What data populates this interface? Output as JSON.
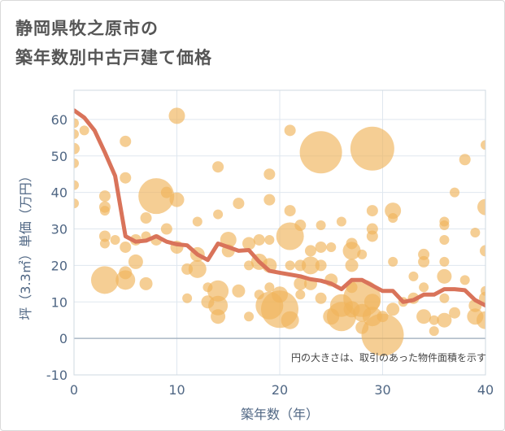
{
  "title_line1": "静岡県牧之原市の",
  "title_line2": "築年数別中古戸建て価格",
  "chart_data": {
    "type": "scatter",
    "xlabel": "築年数（年）",
    "ylabel": "坪（3.3㎡）単価（万円）",
    "xlim": [
      0,
      40
    ],
    "ylim": [
      -10,
      68
    ],
    "xticks": [
      0,
      10,
      20,
      30,
      40
    ],
    "yticks": [
      -10,
      0,
      10,
      20,
      30,
      40,
      50,
      60
    ],
    "grid": true,
    "annotation": "円の大きさは、取引のあった物件面積を示す",
    "colors": {
      "bubble": "#f0b35a",
      "line": "#d9735a",
      "grid": "#dfe7ef",
      "text": "#506784"
    },
    "series": [
      {
        "name": "average",
        "type": "line",
        "x": [
          0,
          1,
          2,
          3,
          4,
          5,
          6,
          7,
          8,
          9,
          10,
          11,
          12,
          13,
          14,
          15,
          16,
          17,
          18,
          19,
          20,
          21,
          22,
          23,
          24,
          25,
          26,
          27,
          28,
          29,
          30,
          31,
          32,
          33,
          34,
          35,
          36,
          37,
          38,
          39,
          40
        ],
        "y": [
          62.5,
          60.5,
          57,
          51,
          44.5,
          28,
          26.5,
          26.8,
          28,
          26.5,
          25.8,
          25.5,
          23,
          21.5,
          26,
          25,
          24,
          24.2,
          21,
          18.5,
          18,
          17.5,
          17,
          16.2,
          15.8,
          15,
          13.5,
          16,
          16,
          14.5,
          13,
          13,
          10,
          10.5,
          12,
          12,
          13.5,
          13.5,
          13.2,
          10.5,
          9
        ]
      },
      {
        "name": "transactions",
        "type": "bubble",
        "points": [
          [
            0,
            59,
            6
          ],
          [
            0,
            56,
            6
          ],
          [
            0,
            52,
            7
          ],
          [
            0,
            48,
            6
          ],
          [
            0,
            42,
            6
          ],
          [
            0,
            37,
            6
          ],
          [
            1,
            57,
            6
          ],
          [
            3,
            39,
            7
          ],
          [
            3,
            36,
            7
          ],
          [
            3,
            35,
            6
          ],
          [
            3,
            28,
            7
          ],
          [
            3,
            26,
            6
          ],
          [
            3,
            16,
            17
          ],
          [
            4,
            27,
            6
          ],
          [
            5,
            54,
            7
          ],
          [
            5,
            44,
            7
          ],
          [
            5,
            25,
            7
          ],
          [
            5,
            18,
            8
          ],
          [
            5,
            16,
            12
          ],
          [
            6,
            21,
            9
          ],
          [
            6,
            27,
            7
          ],
          [
            7,
            15,
            8
          ],
          [
            7,
            28,
            6
          ],
          [
            7,
            33,
            7
          ],
          [
            8,
            39,
            22
          ],
          [
            8,
            27,
            7
          ],
          [
            9,
            40,
            7
          ],
          [
            9,
            30,
            7
          ],
          [
            10,
            61,
            10
          ],
          [
            10,
            38,
            9
          ],
          [
            10,
            25,
            8
          ],
          [
            11,
            19,
            7
          ],
          [
            11,
            11,
            6
          ],
          [
            12,
            32,
            6
          ],
          [
            12,
            23,
            9
          ],
          [
            12,
            19,
            11
          ],
          [
            13,
            10,
            8
          ],
          [
            13,
            14,
            6
          ],
          [
            14,
            47,
            7
          ],
          [
            14,
            34,
            6
          ],
          [
            14,
            13,
            13
          ],
          [
            14,
            9,
            12
          ],
          [
            14,
            6,
            9
          ],
          [
            15,
            24,
            8
          ],
          [
            15,
            27,
            10
          ],
          [
            16,
            37,
            7
          ],
          [
            16,
            13,
            8
          ],
          [
            17,
            26,
            8
          ],
          [
            17,
            20,
            6
          ],
          [
            17,
            6,
            6
          ],
          [
            18,
            27,
            7
          ],
          [
            18,
            21,
            10
          ],
          [
            18,
            12,
            6
          ],
          [
            19,
            45,
            7
          ],
          [
            19,
            38,
            7
          ],
          [
            19,
            27,
            6
          ],
          [
            19,
            20,
            9
          ],
          [
            19,
            14,
            6
          ],
          [
            19,
            9,
            17
          ],
          [
            20,
            12,
            10
          ],
          [
            20,
            8,
            23
          ],
          [
            21,
            57,
            7
          ],
          [
            21,
            35,
            7
          ],
          [
            21,
            28,
            17
          ],
          [
            21,
            20,
            6
          ],
          [
            21,
            5,
            11
          ],
          [
            22,
            31,
            7
          ],
          [
            22,
            20,
            7
          ],
          [
            22,
            15,
            8
          ],
          [
            22,
            12,
            6
          ],
          [
            23,
            24,
            7
          ],
          [
            23,
            20,
            11
          ],
          [
            23,
            15,
            8
          ],
          [
            24,
            51,
            26
          ],
          [
            24,
            31,
            6
          ],
          [
            24,
            25,
            7
          ],
          [
            24,
            20,
            7
          ],
          [
            24,
            11,
            7
          ],
          [
            25,
            25,
            6
          ],
          [
            25,
            16,
            8
          ],
          [
            25,
            6,
            10
          ],
          [
            26,
            32,
            6
          ],
          [
            26,
            9,
            14
          ],
          [
            26,
            6,
            18
          ],
          [
            27,
            26,
            7
          ],
          [
            27,
            24,
            11
          ],
          [
            27,
            20,
            8
          ],
          [
            27,
            14,
            7
          ],
          [
            27,
            8,
            10
          ],
          [
            28,
            11,
            23
          ],
          [
            28,
            7,
            11
          ],
          [
            28,
            3,
            8
          ],
          [
            28,
            23,
            6
          ],
          [
            29,
            52,
            27
          ],
          [
            29,
            35,
            7
          ],
          [
            29,
            30,
            7
          ],
          [
            29,
            28,
            7
          ],
          [
            29,
            10,
            10
          ],
          [
            29,
            6,
            12
          ],
          [
            30,
            6,
            7
          ],
          [
            30,
            1,
            26
          ],
          [
            31,
            35,
            10
          ],
          [
            31,
            33,
            6
          ],
          [
            31,
            21,
            6
          ],
          [
            31,
            8,
            8
          ],
          [
            32,
            10,
            6
          ],
          [
            33,
            17,
            6
          ],
          [
            33,
            11,
            7
          ],
          [
            34,
            23,
            7
          ],
          [
            34,
            21,
            7
          ],
          [
            34,
            14,
            6
          ],
          [
            34,
            6,
            9
          ],
          [
            35,
            2,
            6
          ],
          [
            35,
            5,
            6
          ],
          [
            36,
            32,
            6
          ],
          [
            36,
            31,
            6
          ],
          [
            36,
            27,
            6
          ],
          [
            36,
            21,
            6
          ],
          [
            36,
            17,
            9
          ],
          [
            36,
            11,
            6
          ],
          [
            36,
            5,
            9
          ],
          [
            37,
            40,
            6
          ],
          [
            37,
            7,
            7
          ],
          [
            38,
            49,
            7
          ],
          [
            38,
            16,
            6
          ],
          [
            39,
            29,
            6
          ],
          [
            39,
            9,
            8
          ],
          [
            39,
            6,
            10
          ],
          [
            40,
            53,
            6
          ],
          [
            40,
            36,
            10
          ],
          [
            40,
            24,
            7
          ],
          [
            40,
            13,
            6
          ],
          [
            40,
            11,
            8
          ],
          [
            40,
            5,
            11
          ]
        ]
      }
    ]
  }
}
